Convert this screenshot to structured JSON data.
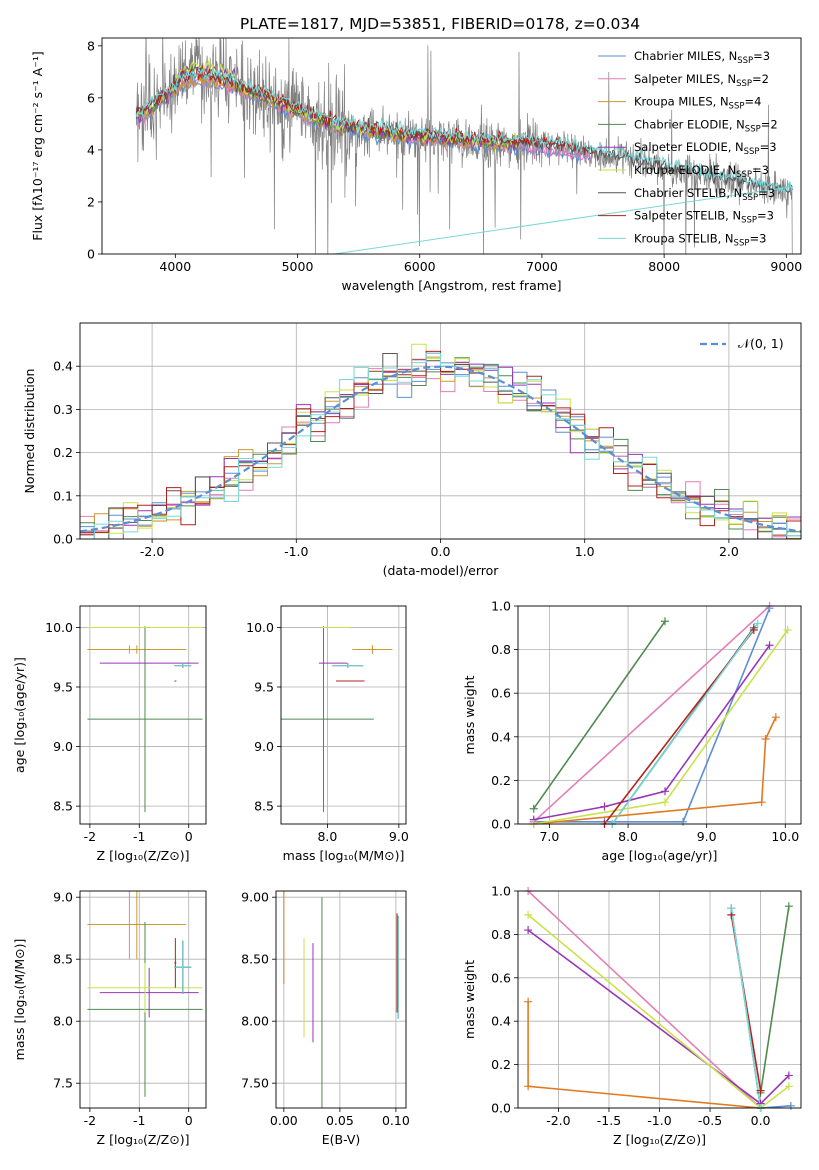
{
  "figure": {
    "title": "PLATE=1817, MJD=53851, FIBERID=0178, z=0.034"
  },
  "colors": {
    "Chabrier MILES": "#5b8ed6",
    "Salpeter MILES": "#e27fb6",
    "Kroupa MILES": "#c99a2e",
    "Chabrier ELODIE": "#4f8a4f",
    "Salpeter ELODIE": "#9a36b5",
    "Kroupa ELODIE": "#c8e34a",
    "Chabrier STELIB": "#555555",
    "Salpeter STELIB": "#b0231c",
    "Kroupa STELIB": "#76d8d8",
    "data": "#808080",
    "kroupa_wt": "#e07a20"
  },
  "chart_data": [
    {
      "id": "spectrum",
      "type": "line",
      "title": "PLATE=1817, MJD=53851, FIBERID=0178, z=0.034",
      "xlabel": "wavelength [Angstrom, rest frame]",
      "ylabel": "Flux [fλ10⁻¹⁷ erg cm⁻² s⁻¹ A⁻¹]",
      "xlim": [
        3400,
        9120
      ],
      "ylim": [
        0,
        8.3
      ],
      "xticks": [
        4000,
        5000,
        6000,
        7000,
        8000,
        9000
      ],
      "yticks": [
        0,
        2,
        4,
        6,
        8
      ],
      "grid": false,
      "legend": "top-right",
      "legend_entries": [
        {
          "model": "Chabrier MILES",
          "n": "3"
        },
        {
          "model": "Salpeter MILES",
          "n": "2"
        },
        {
          "model": "Kroupa MILES",
          "n": "4"
        },
        {
          "model": "Chabrier ELODIE",
          "n": "2"
        },
        {
          "model": "Salpeter ELODIE",
          "n": "3"
        },
        {
          "model": "Kroupa ELODIE",
          "n": "3"
        },
        {
          "model": "Chabrier STELIB",
          "n": "3"
        },
        {
          "model": "Salpeter STELIB",
          "n": "3"
        },
        {
          "model": "Kroupa STELIB",
          "n": "3"
        }
      ],
      "continuum": [
        [
          3680,
          5.3
        ],
        [
          3800,
          5.6
        ],
        [
          3950,
          6.2
        ],
        [
          4050,
          6.6
        ],
        [
          4200,
          6.8
        ],
        [
          4400,
          6.6
        ],
        [
          4600,
          6.3
        ],
        [
          4800,
          5.9
        ],
        [
          5000,
          5.5
        ],
        [
          5200,
          5.1
        ],
        [
          5400,
          4.9
        ],
        [
          5600,
          4.7
        ],
        [
          5800,
          4.6
        ],
        [
          6000,
          4.5
        ],
        [
          6200,
          4.45
        ],
        [
          6400,
          4.35
        ],
        [
          6600,
          4.3
        ],
        [
          6800,
          4.25
        ],
        [
          7000,
          4.15
        ],
        [
          7200,
          4.05
        ],
        [
          7400,
          3.85
        ],
        [
          7600,
          3.7
        ],
        [
          7800,
          3.5
        ],
        [
          8000,
          3.3
        ],
        [
          8200,
          3.1
        ],
        [
          8400,
          2.9
        ],
        [
          8600,
          2.75
        ],
        [
          8800,
          2.5
        ],
        [
          9050,
          2.3
        ]
      ],
      "model_range": [
        3680,
        9050
      ]
    },
    {
      "id": "residuals",
      "type": "line",
      "xlabel": "(data-model)/error",
      "ylabel": "Normed distribution",
      "xlim": [
        -2.5,
        2.5
      ],
      "ylim": [
        0,
        0.5
      ],
      "xticks": [
        -2,
        -1,
        0,
        1,
        2
      ],
      "yticks": [
        0.0,
        0.1,
        0.2,
        0.3,
        0.4
      ],
      "grid": true,
      "legend": "top-right",
      "legend_label": "𝒩(0, 1)",
      "bin_width": 0.1
    },
    {
      "id": "age_vs_Z",
      "type": "scatter",
      "xlabel": "Z [log₁₀(Z/Z⊙)]",
      "ylabel": "age  [log₁₀(age/yr)]",
      "xlim": [
        -2.2,
        0.35
      ],
      "ylim": [
        8.35,
        10.18
      ],
      "xticks": [
        -2,
        -1,
        0
      ],
      "yticks": [
        8.5,
        9.0,
        9.5,
        10.0
      ],
      "grid": true
    },
    {
      "id": "age_vs_mass",
      "type": "scatter",
      "xlabel": "mass [log₁₀(M/M⊙)]",
      "ylabel": "",
      "xlim": [
        7.35,
        9.1
      ],
      "ylim": [
        8.35,
        10.18
      ],
      "xticks": [
        8,
        9
      ],
      "yticks": [
        8.5,
        9.0,
        9.5,
        10.0
      ],
      "grid": true
    },
    {
      "id": "weight_vs_age",
      "type": "line",
      "xlabel": "age  [log₁₀(age/yr)]",
      "ylabel": "mass weight",
      "xlim": [
        6.6,
        10.2
      ],
      "ylim": [
        0,
        1.0
      ],
      "xticks": [
        7,
        8,
        9,
        10
      ],
      "yticks": [
        0.0,
        0.2,
        0.4,
        0.6,
        0.8,
        1.0
      ],
      "grid": true
    },
    {
      "id": "mass_vs_Z",
      "type": "scatter",
      "xlabel": "Z [log₁₀(Z/Z⊙)]",
      "ylabel": "mass [log₁₀(M/M⊙)]",
      "xlim": [
        -2.2,
        0.35
      ],
      "ylim": [
        7.3,
        9.05
      ],
      "xticks": [
        -2,
        -1,
        0
      ],
      "yticks": [
        7.5,
        8.0,
        8.5,
        9.0
      ],
      "grid": true
    },
    {
      "id": "mass_vs_ebv",
      "type": "scatter",
      "xlabel": "E(B-V)",
      "ylabel": "",
      "xlim": [
        -0.007,
        0.109
      ],
      "ylim": [
        7.3,
        9.05
      ],
      "xticks": [
        0.0,
        0.05,
        0.1
      ],
      "yticks": [
        7.5,
        8.0,
        8.5,
        9.0
      ],
      "grid": true
    },
    {
      "id": "weight_vs_Z",
      "type": "line",
      "xlabel": "Z [log₁₀(Z/Z⊙)]",
      "ylabel": "mass weight",
      "xlim": [
        -2.4,
        0.4
      ],
      "ylim": [
        0,
        1.0
      ],
      "xticks": [
        -2.0,
        -1.5,
        -1.0,
        -0.5,
        0.0
      ],
      "yticks": [
        0.0,
        0.2,
        0.4,
        0.6,
        0.8,
        1.0
      ],
      "grid": true
    }
  ],
  "model_params": [
    {
      "model": "Chabrier MILES",
      "Z": [
        -0.29,
        0.05
      ],
      "age": [
        9.66,
        9.7
      ],
      "mass": [
        8.42,
        8.45
      ],
      "ebv": 0.102
    },
    {
      "model": "Salpeter MILES",
      "Z": [
        -2.05,
        -0.35
      ],
      "age": [
        9.78,
        9.85
      ],
      "mass": [
        8.7,
        8.86
      ],
      "ebv": 0.0
    },
    {
      "model": "Kroupa MILES",
      "Z": [
        -2.05,
        -0.05
      ],
      "age": [
        9.78,
        9.85
      ],
      "mass": [
        8.7,
        8.86
      ],
      "ebv": 0.0
    },
    {
      "model": "Chabrier ELODIE",
      "Z": [
        -2.05,
        0.28
      ],
      "age": [
        8.45,
        10.01
      ],
      "mass": [
        7.59,
        8.6
      ],
      "ebv": 0.034
    },
    {
      "model": "Salpeter ELODIE",
      "Z": [
        -1.8,
        0.2
      ],
      "age": [
        9.7,
        9.7
      ],
      "mass": [
        8.23,
        8.23
      ],
      "ebv": 0.026
    },
    {
      "model": "Kroupa ELODIE",
      "Z": [
        -2.05,
        0.28
      ],
      "age": [
        10.0,
        10.0
      ],
      "mass": [
        8.27,
        8.27
      ],
      "ebv": 0.018
    },
    {
      "model": "Chabrier STELIB",
      "Z": [
        -0.29,
        0.05
      ],
      "age": [
        9.66,
        9.7
      ],
      "mass": [
        8.42,
        8.45
      ],
      "ebv": 0.102
    },
    {
      "model": "Salpeter STELIB",
      "Z": [
        -0.29,
        -0.25
      ],
      "age": [
        9.55,
        9.55
      ],
      "mass": [
        8.47,
        8.47
      ],
      "ebv": 0.101
    },
    {
      "model": "Kroupa STELIB",
      "Z": [
        -0.29,
        0.05
      ],
      "age": [
        9.66,
        9.7
      ],
      "mass": [
        8.42,
        8.45
      ],
      "ebv": 0.102
    }
  ],
  "weight_age_series": [
    {
      "model": "Chabrier MILES",
      "points": [
        [
          6.8,
          0.01
        ],
        [
          7.7,
          0.01
        ],
        [
          8.7,
          0.01
        ],
        [
          9.8,
          0.99
        ]
      ]
    },
    {
      "model": "Salpeter MILES",
      "points": [
        [
          6.8,
          0.01
        ],
        [
          9.8,
          1.0
        ]
      ]
    },
    {
      "model": "Kroupa MILES",
      "points": [
        [
          6.8,
          0.0
        ],
        [
          9.7,
          0.1
        ],
        [
          9.75,
          0.39
        ],
        [
          9.88,
          0.49
        ]
      ]
    },
    {
      "model": "Chabrier ELODIE",
      "points": [
        [
          6.8,
          0.07
        ],
        [
          8.47,
          0.93
        ]
      ]
    },
    {
      "model": "Salpeter ELODIE",
      "points": [
        [
          6.8,
          0.02
        ],
        [
          7.7,
          0.08
        ],
        [
          8.47,
          0.15
        ],
        [
          9.8,
          0.82
        ]
      ]
    },
    {
      "model": "Kroupa ELODIE",
      "points": [
        [
          6.8,
          0.0
        ],
        [
          8.47,
          0.1
        ],
        [
          10.03,
          0.89
        ]
      ]
    },
    {
      "model": "Chabrier STELIB",
      "points": [
        [
          7.8,
          0.0
        ],
        [
          9.6,
          0.9
        ]
      ]
    },
    {
      "model": "Salpeter STELIB",
      "points": [
        [
          7.7,
          0.0
        ],
        [
          9.6,
          0.89
        ]
      ]
    },
    {
      "model": "Kroupa STELIB",
      "points": [
        [
          7.8,
          0.0
        ],
        [
          9.65,
          0.92
        ]
      ]
    }
  ],
  "weight_Z_series": [
    {
      "model": "Chabrier MILES",
      "points": [
        [
          0.0,
          0.0
        ],
        [
          0.3,
          0.01
        ]
      ]
    },
    {
      "model": "Salpeter MILES",
      "points": [
        [
          -2.3,
          1.0
        ],
        [
          0.0,
          0.0
        ]
      ]
    },
    {
      "model": "Kroupa MILES",
      "points": [
        [
          -2.3,
          0.49
        ],
        [
          -2.3,
          0.1
        ],
        [
          0.0,
          0.0
        ]
      ]
    },
    {
      "model": "Chabrier ELODIE",
      "points": [
        [
          0.0,
          0.07
        ],
        [
          0.28,
          0.93
        ]
      ]
    },
    {
      "model": "Salpeter ELODIE",
      "points": [
        [
          -2.3,
          0.82
        ],
        [
          0.0,
          0.02
        ],
        [
          0.28,
          0.15
        ]
      ]
    },
    {
      "model": "Kroupa ELODIE",
      "points": [
        [
          -2.3,
          0.89
        ],
        [
          0.0,
          0.0
        ],
        [
          0.28,
          0.1
        ]
      ]
    },
    {
      "model": "Chabrier STELIB",
      "points": [
        [
          -0.29,
          0.92
        ],
        [
          0.0,
          0.0
        ]
      ]
    },
    {
      "model": "Salpeter STELIB",
      "points": [
        [
          -0.29,
          0.89
        ],
        [
          0.0,
          0.08
        ]
      ]
    },
    {
      "model": "Kroupa STELIB",
      "points": [
        [
          -0.29,
          0.92
        ],
        [
          0.0,
          0.0
        ]
      ]
    }
  ]
}
